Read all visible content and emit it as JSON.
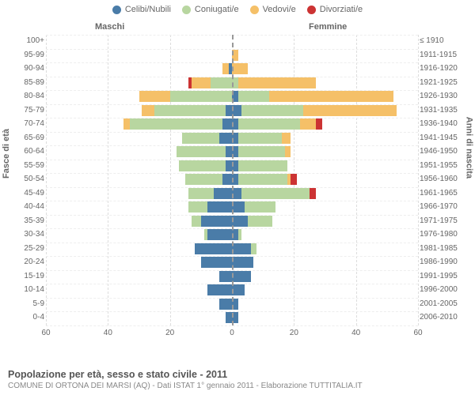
{
  "legend": {
    "items": [
      {
        "label": "Celibi/Nubili",
        "color": "#4a7ca8"
      },
      {
        "label": "Coniugati/e",
        "color": "#b8d6a0"
      },
      {
        "label": "Vedovi/e",
        "color": "#f5c068"
      },
      {
        "label": "Divorziati/e",
        "color": "#cc3333"
      }
    ]
  },
  "headers": {
    "male": "Maschi",
    "female": "Femmine"
  },
  "axis": {
    "left_title": "Fasce di età",
    "right_title": "Anni di nascita",
    "x_ticks": [
      60,
      40,
      20,
      0,
      20,
      40,
      60
    ],
    "x_max": 60
  },
  "colors": {
    "celibi": "#4a7ca8",
    "coniugati": "#b8d6a0",
    "vedovi": "#f5c068",
    "divorziati": "#cc3333",
    "grid": "#dddddd",
    "center": "#999999",
    "row_border": "#eeeeee"
  },
  "rows": [
    {
      "age": "100+",
      "birth": "≤ 1910",
      "m": {
        "c": 0,
        "k": 0,
        "v": 0,
        "d": 0
      },
      "f": {
        "c": 0,
        "k": 0,
        "v": 0,
        "d": 0
      }
    },
    {
      "age": "95-99",
      "birth": "1911-1915",
      "m": {
        "c": 0,
        "k": 0,
        "v": 0,
        "d": 0
      },
      "f": {
        "c": 0,
        "k": 0,
        "v": 2,
        "d": 0
      }
    },
    {
      "age": "90-94",
      "birth": "1916-1920",
      "m": {
        "c": 1,
        "k": 0,
        "v": 2,
        "d": 0
      },
      "f": {
        "c": 0,
        "k": 0,
        "v": 5,
        "d": 0
      }
    },
    {
      "age": "85-89",
      "birth": "1921-1925",
      "m": {
        "c": 0,
        "k": 7,
        "v": 6,
        "d": 1
      },
      "f": {
        "c": 0,
        "k": 2,
        "v": 25,
        "d": 0
      }
    },
    {
      "age": "80-84",
      "birth": "1926-1930",
      "m": {
        "c": 0,
        "k": 20,
        "v": 10,
        "d": 0
      },
      "f": {
        "c": 2,
        "k": 10,
        "v": 40,
        "d": 0
      }
    },
    {
      "age": "75-79",
      "birth": "1931-1935",
      "m": {
        "c": 2,
        "k": 23,
        "v": 4,
        "d": 0
      },
      "f": {
        "c": 3,
        "k": 20,
        "v": 30,
        "d": 0
      }
    },
    {
      "age": "70-74",
      "birth": "1936-1940",
      "m": {
        "c": 3,
        "k": 30,
        "v": 2,
        "d": 0
      },
      "f": {
        "c": 2,
        "k": 20,
        "v": 5,
        "d": 2
      }
    },
    {
      "age": "65-69",
      "birth": "1941-1945",
      "m": {
        "c": 4,
        "k": 12,
        "v": 0,
        "d": 0
      },
      "f": {
        "c": 2,
        "k": 14,
        "v": 3,
        "d": 0
      }
    },
    {
      "age": "60-64",
      "birth": "1946-1950",
      "m": {
        "c": 2,
        "k": 16,
        "v": 0,
        "d": 0
      },
      "f": {
        "c": 2,
        "k": 15,
        "v": 2,
        "d": 0
      }
    },
    {
      "age": "55-59",
      "birth": "1951-1955",
      "m": {
        "c": 2,
        "k": 15,
        "v": 0,
        "d": 0
      },
      "f": {
        "c": 2,
        "k": 16,
        "v": 0,
        "d": 0
      }
    },
    {
      "age": "50-54",
      "birth": "1956-1960",
      "m": {
        "c": 3,
        "k": 12,
        "v": 0,
        "d": 0
      },
      "f": {
        "c": 2,
        "k": 16,
        "v": 1,
        "d": 2
      }
    },
    {
      "age": "45-49",
      "birth": "1961-1965",
      "m": {
        "c": 6,
        "k": 8,
        "v": 0,
        "d": 0
      },
      "f": {
        "c": 3,
        "k": 22,
        "v": 0,
        "d": 2
      }
    },
    {
      "age": "40-44",
      "birth": "1966-1970",
      "m": {
        "c": 8,
        "k": 6,
        "v": 0,
        "d": 0
      },
      "f": {
        "c": 4,
        "k": 10,
        "v": 0,
        "d": 0
      }
    },
    {
      "age": "35-39",
      "birth": "1971-1975",
      "m": {
        "c": 10,
        "k": 3,
        "v": 0,
        "d": 0
      },
      "f": {
        "c": 5,
        "k": 8,
        "v": 0,
        "d": 0
      }
    },
    {
      "age": "30-34",
      "birth": "1976-1980",
      "m": {
        "c": 8,
        "k": 1,
        "v": 0,
        "d": 0
      },
      "f": {
        "c": 2,
        "k": 1,
        "v": 0,
        "d": 0
      }
    },
    {
      "age": "25-29",
      "birth": "1981-1985",
      "m": {
        "c": 12,
        "k": 0,
        "v": 0,
        "d": 0
      },
      "f": {
        "c": 6,
        "k": 2,
        "v": 0,
        "d": 0
      }
    },
    {
      "age": "20-24",
      "birth": "1986-1990",
      "m": {
        "c": 10,
        "k": 0,
        "v": 0,
        "d": 0
      },
      "f": {
        "c": 7,
        "k": 0,
        "v": 0,
        "d": 0
      }
    },
    {
      "age": "15-19",
      "birth": "1991-1995",
      "m": {
        "c": 4,
        "k": 0,
        "v": 0,
        "d": 0
      },
      "f": {
        "c": 6,
        "k": 0,
        "v": 0,
        "d": 0
      }
    },
    {
      "age": "10-14",
      "birth": "1996-2000",
      "m": {
        "c": 8,
        "k": 0,
        "v": 0,
        "d": 0
      },
      "f": {
        "c": 4,
        "k": 0,
        "v": 0,
        "d": 0
      }
    },
    {
      "age": "5-9",
      "birth": "2001-2005",
      "m": {
        "c": 4,
        "k": 0,
        "v": 0,
        "d": 0
      },
      "f": {
        "c": 2,
        "k": 0,
        "v": 0,
        "d": 0
      }
    },
    {
      "age": "0-4",
      "birth": "2006-2010",
      "m": {
        "c": 2,
        "k": 0,
        "v": 0,
        "d": 0
      },
      "f": {
        "c": 2,
        "k": 0,
        "v": 0,
        "d": 0
      }
    }
  ],
  "footer": {
    "title": "Popolazione per età, sesso e stato civile - 2011",
    "subtitle": "COMUNE DI ORTONA DEI MARSI (AQ) - Dati ISTAT 1° gennaio 2011 - Elaborazione TUTTITALIA.IT"
  }
}
